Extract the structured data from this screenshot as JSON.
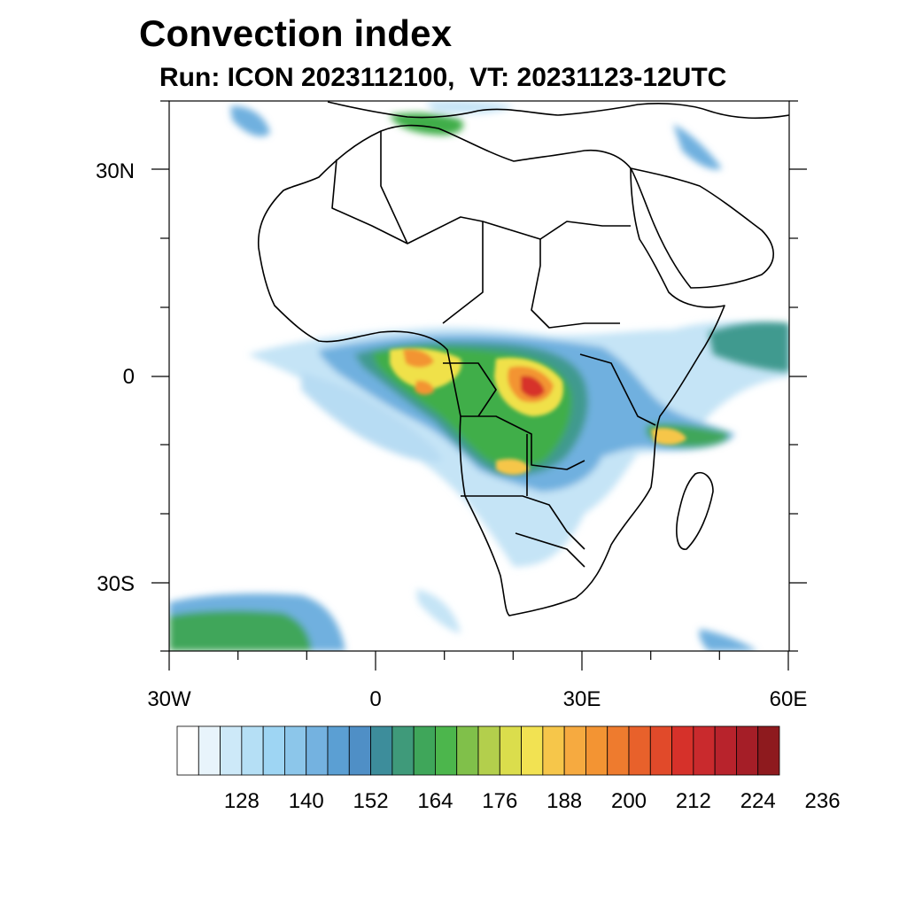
{
  "title": "Convection index",
  "subtitle": "Run: ICON 2023112100,  VT: 20231123-12UTC",
  "map": {
    "region": "Africa",
    "x_tick_labels": [
      "30W",
      "0",
      "30E",
      "60E"
    ],
    "y_tick_labels": [
      "30N",
      "0",
      "30S"
    ],
    "field_colors": {
      "light_blue": "#a6d8f2",
      "blue": "#5b9fd3",
      "teal": "#3f9a8f",
      "green": "#3fae4a",
      "yellow": "#f0e14a",
      "orange": "#f39433",
      "red": "#d7332b"
    }
  },
  "colorbar": {
    "labels": [
      "128",
      "140",
      "152",
      "164",
      "176",
      "188",
      "200",
      "212",
      "224",
      "236"
    ],
    "colors": [
      "#ffffff",
      "#e8f4fb",
      "#cde9f8",
      "#b5dff5",
      "#9ed5f3",
      "#8cc6ea",
      "#74b2e0",
      "#5b9fd3",
      "#4f8fc6",
      "#3d8d9b",
      "#3f9a7a",
      "#3fa65a",
      "#4cb64c",
      "#80c04a",
      "#b3cf4c",
      "#dbdd4c",
      "#f2e252",
      "#f6c64a",
      "#f6aa40",
      "#f39433",
      "#ee7b2e",
      "#e8612b",
      "#e14a2a",
      "#d6312a",
      "#c92a2d",
      "#b8232c",
      "#a51e27",
      "#8e1a1e"
    ]
  }
}
